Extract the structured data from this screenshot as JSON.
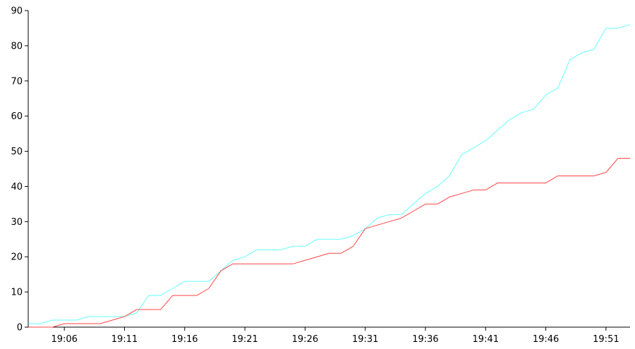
{
  "chart_data": {
    "type": "line",
    "title": "",
    "xlabel": "",
    "ylabel": "",
    "ylim": [
      0,
      90
    ],
    "y_ticks": [
      0,
      10,
      20,
      30,
      40,
      50,
      60,
      70,
      80,
      90
    ],
    "x_range_minutes": [
      "19:03",
      "19:53"
    ],
    "x_tick_labels": [
      "19:06",
      "19:11",
      "19:16",
      "19:21",
      "19:26",
      "19:31",
      "19:36",
      "19:41",
      "19:46",
      "19:51"
    ],
    "grid": false,
    "legend": "none",
    "x": [
      "19:03",
      "19:04",
      "19:05",
      "19:06",
      "19:07",
      "19:08",
      "19:09",
      "19:10",
      "19:11",
      "19:12",
      "19:13",
      "19:14",
      "19:15",
      "19:16",
      "19:17",
      "19:18",
      "19:19",
      "19:20",
      "19:21",
      "19:22",
      "19:23",
      "19:24",
      "19:25",
      "19:26",
      "19:27",
      "19:28",
      "19:29",
      "19:30",
      "19:31",
      "19:32",
      "19:33",
      "19:34",
      "19:35",
      "19:36",
      "19:37",
      "19:38",
      "19:39",
      "19:40",
      "19:41",
      "19:42",
      "19:43",
      "19:44",
      "19:45",
      "19:46",
      "19:47",
      "19:48",
      "19:49",
      "19:50",
      "19:51",
      "19:52",
      "19:53"
    ],
    "series": [
      {
        "color": "#66ffff",
        "values": [
          1,
          1,
          2,
          2,
          2,
          3,
          3,
          3,
          3,
          4,
          9,
          9,
          11,
          13,
          13,
          13,
          16,
          19,
          20,
          22,
          22,
          22,
          23,
          23,
          25,
          25,
          25,
          26,
          28,
          31,
          32,
          32,
          35,
          38,
          40,
          43,
          49,
          51,
          53,
          56,
          59,
          61,
          62,
          66,
          68,
          76,
          78,
          79,
          85,
          85,
          86
        ]
      },
      {
        "color": "#ff4444",
        "values": [
          0,
          0,
          0,
          1,
          1,
          1,
          1,
          2,
          3,
          5,
          5,
          5,
          9,
          9,
          9,
          11,
          16,
          18,
          18,
          18,
          18,
          18,
          18,
          19,
          20,
          21,
          21,
          23,
          28,
          29,
          30,
          31,
          33,
          35,
          35,
          37,
          38,
          39,
          39,
          41,
          41,
          41,
          41,
          41,
          43,
          43,
          43,
          43,
          44,
          48,
          48
        ]
      }
    ]
  }
}
